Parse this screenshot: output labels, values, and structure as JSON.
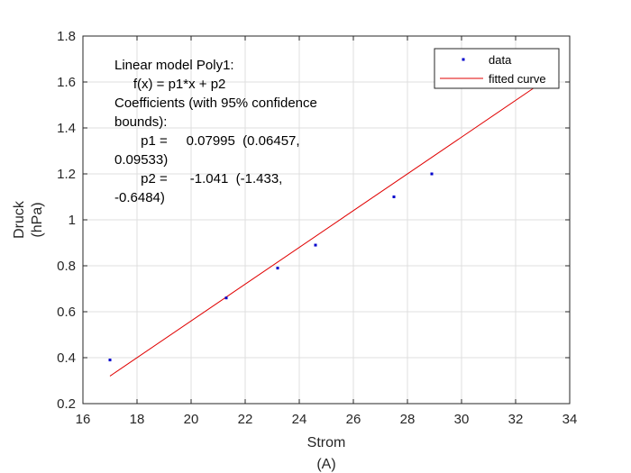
{
  "chart_data": {
    "type": "scatter",
    "xlim": [
      16,
      34
    ],
    "ylim": [
      0.2,
      1.8
    ],
    "xticks": [
      16,
      18,
      20,
      22,
      24,
      26,
      28,
      30,
      32,
      34
    ],
    "yticks": [
      0.2,
      0.4,
      0.6,
      0.8,
      1,
      1.2,
      1.4,
      1.6,
      1.8
    ],
    "xtick_labels": [
      "16",
      "18",
      "20",
      "22",
      "24",
      "26",
      "28",
      "30",
      "32",
      "34"
    ],
    "ytick_labels": [
      "0.2",
      "0.4",
      "0.6",
      "0.8",
      "1",
      "1.2",
      "1.4",
      "1.6",
      "1.8"
    ],
    "grid": true,
    "xlabel_lines": [
      "Strom",
      "(A)"
    ],
    "ylabel_lines": [
      "Druck",
      "(hPa)"
    ],
    "legend_position": "top-right",
    "series": [
      {
        "name": "data",
        "kind": "points",
        "color": "#0000cc",
        "points": [
          {
            "x": 17.0,
            "y": 0.39
          },
          {
            "x": 21.3,
            "y": 0.66
          },
          {
            "x": 23.2,
            "y": 0.79
          },
          {
            "x": 24.6,
            "y": 0.89
          },
          {
            "x": 27.5,
            "y": 1.1
          },
          {
            "x": 28.9,
            "y": 1.2
          }
        ]
      },
      {
        "name": "fitted curve",
        "kind": "line",
        "color": "#e00000",
        "points": [
          {
            "x": 17.0,
            "y": 0.32
          },
          {
            "x": 33.0,
            "y": 1.6
          }
        ]
      }
    ],
    "annotation_lines": [
      "Linear model Poly1:",
      "     f(x) = p1*x + p2",
      "Coefficients (with 95% confidence",
      "bounds):",
      "       p1 =     0.07995  (0.06457,",
      "0.09533)",
      "       p2 =      -1.041  (-1.433,",
      "-0.6484)"
    ]
  }
}
